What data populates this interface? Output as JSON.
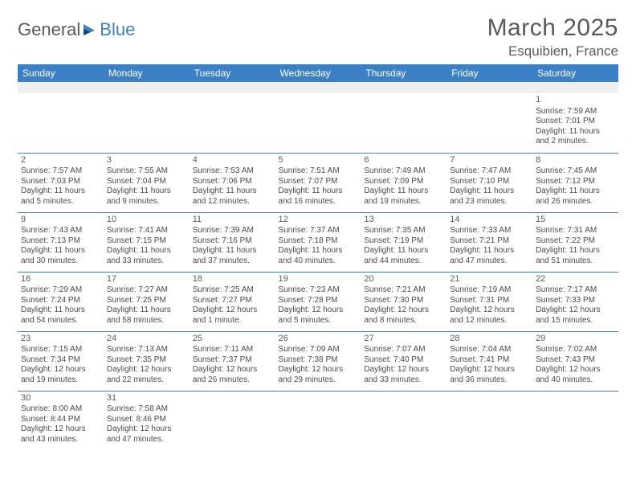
{
  "logo": {
    "text1": "General",
    "text2": "Blue"
  },
  "title": "March 2025",
  "location": "Esquibien, France",
  "colors": {
    "header_bg": "#3b7fc4",
    "header_fg": "#ffffff",
    "text": "#4a4a4a",
    "rule": "#3b7fc4",
    "blank_bg": "#efefef",
    "page_bg": "#ffffff"
  },
  "weekdays": [
    "Sunday",
    "Monday",
    "Tuesday",
    "Wednesday",
    "Thursday",
    "Friday",
    "Saturday"
  ],
  "days": {
    "1": {
      "sunrise": "7:59 AM",
      "sunset": "7:01 PM",
      "daylight": "11 hours and 2 minutes."
    },
    "2": {
      "sunrise": "7:57 AM",
      "sunset": "7:03 PM",
      "daylight": "11 hours and 5 minutes."
    },
    "3": {
      "sunrise": "7:55 AM",
      "sunset": "7:04 PM",
      "daylight": "11 hours and 9 minutes."
    },
    "4": {
      "sunrise": "7:53 AM",
      "sunset": "7:06 PM",
      "daylight": "11 hours and 12 minutes."
    },
    "5": {
      "sunrise": "7:51 AM",
      "sunset": "7:07 PM",
      "daylight": "11 hours and 16 minutes."
    },
    "6": {
      "sunrise": "7:49 AM",
      "sunset": "7:09 PM",
      "daylight": "11 hours and 19 minutes."
    },
    "7": {
      "sunrise": "7:47 AM",
      "sunset": "7:10 PM",
      "daylight": "11 hours and 23 minutes."
    },
    "8": {
      "sunrise": "7:45 AM",
      "sunset": "7:12 PM",
      "daylight": "11 hours and 26 minutes."
    },
    "9": {
      "sunrise": "7:43 AM",
      "sunset": "7:13 PM",
      "daylight": "11 hours and 30 minutes."
    },
    "10": {
      "sunrise": "7:41 AM",
      "sunset": "7:15 PM",
      "daylight": "11 hours and 33 minutes."
    },
    "11": {
      "sunrise": "7:39 AM",
      "sunset": "7:16 PM",
      "daylight": "11 hours and 37 minutes."
    },
    "12": {
      "sunrise": "7:37 AM",
      "sunset": "7:18 PM",
      "daylight": "11 hours and 40 minutes."
    },
    "13": {
      "sunrise": "7:35 AM",
      "sunset": "7:19 PM",
      "daylight": "11 hours and 44 minutes."
    },
    "14": {
      "sunrise": "7:33 AM",
      "sunset": "7:21 PM",
      "daylight": "11 hours and 47 minutes."
    },
    "15": {
      "sunrise": "7:31 AM",
      "sunset": "7:22 PM",
      "daylight": "11 hours and 51 minutes."
    },
    "16": {
      "sunrise": "7:29 AM",
      "sunset": "7:24 PM",
      "daylight": "11 hours and 54 minutes."
    },
    "17": {
      "sunrise": "7:27 AM",
      "sunset": "7:25 PM",
      "daylight": "11 hours and 58 minutes."
    },
    "18": {
      "sunrise": "7:25 AM",
      "sunset": "7:27 PM",
      "daylight": "12 hours and 1 minute."
    },
    "19": {
      "sunrise": "7:23 AM",
      "sunset": "7:28 PM",
      "daylight": "12 hours and 5 minutes."
    },
    "20": {
      "sunrise": "7:21 AM",
      "sunset": "7:30 PM",
      "daylight": "12 hours and 8 minutes."
    },
    "21": {
      "sunrise": "7:19 AM",
      "sunset": "7:31 PM",
      "daylight": "12 hours and 12 minutes."
    },
    "22": {
      "sunrise": "7:17 AM",
      "sunset": "7:33 PM",
      "daylight": "12 hours and 15 minutes."
    },
    "23": {
      "sunrise": "7:15 AM",
      "sunset": "7:34 PM",
      "daylight": "12 hours and 19 minutes."
    },
    "24": {
      "sunrise": "7:13 AM",
      "sunset": "7:35 PM",
      "daylight": "12 hours and 22 minutes."
    },
    "25": {
      "sunrise": "7:11 AM",
      "sunset": "7:37 PM",
      "daylight": "12 hours and 26 minutes."
    },
    "26": {
      "sunrise": "7:09 AM",
      "sunset": "7:38 PM",
      "daylight": "12 hours and 29 minutes."
    },
    "27": {
      "sunrise": "7:07 AM",
      "sunset": "7:40 PM",
      "daylight": "12 hours and 33 minutes."
    },
    "28": {
      "sunrise": "7:04 AM",
      "sunset": "7:41 PM",
      "daylight": "12 hours and 36 minutes."
    },
    "29": {
      "sunrise": "7:02 AM",
      "sunset": "7:43 PM",
      "daylight": "12 hours and 40 minutes."
    },
    "30": {
      "sunrise": "8:00 AM",
      "sunset": "8:44 PM",
      "daylight": "12 hours and 43 minutes."
    },
    "31": {
      "sunrise": "7:58 AM",
      "sunset": "8:46 PM",
      "daylight": "12 hours and 47 minutes."
    }
  },
  "labels": {
    "sunrise": "Sunrise: ",
    "sunset": "Sunset: ",
    "daylight": "Daylight: "
  },
  "layout": [
    [
      null,
      null,
      null,
      null,
      null,
      null,
      "1"
    ],
    [
      "2",
      "3",
      "4",
      "5",
      "6",
      "7",
      "8"
    ],
    [
      "9",
      "10",
      "11",
      "12",
      "13",
      "14",
      "15"
    ],
    [
      "16",
      "17",
      "18",
      "19",
      "20",
      "21",
      "22"
    ],
    [
      "23",
      "24",
      "25",
      "26",
      "27",
      "28",
      "29"
    ],
    [
      "30",
      "31",
      null,
      null,
      null,
      null,
      null
    ]
  ]
}
